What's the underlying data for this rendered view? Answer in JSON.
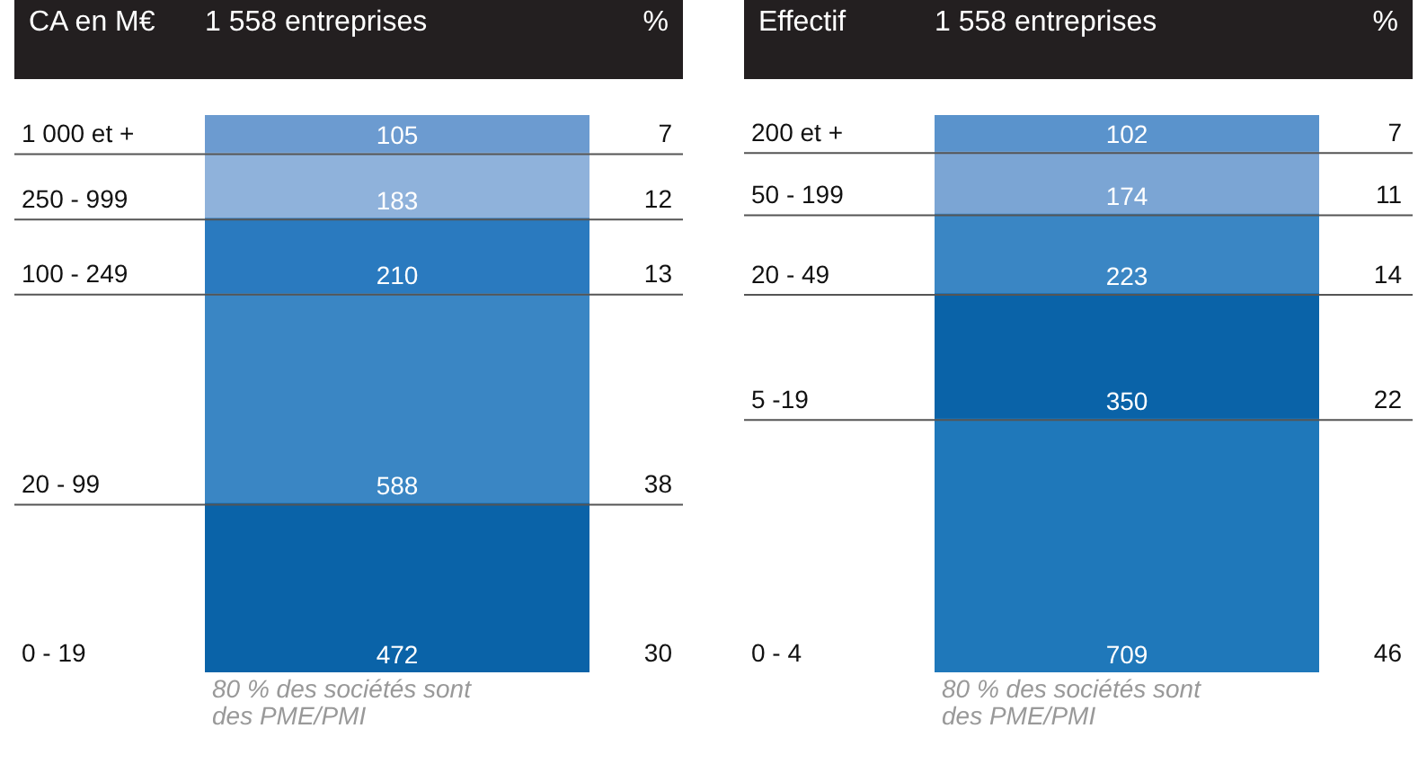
{
  "chart_data": [
    {
      "type": "other",
      "title": "CA en M€",
      "subtitle": "1 558 entreprises",
      "categories": [
        "0 - 19",
        "20 - 99",
        "100 - 249",
        "250 - 999",
        "1 000 et +"
      ],
      "data_labels": true,
      "values": [
        472,
        588,
        210,
        183,
        105
      ],
      "colors": [
        "#0a63a8",
        "#3a86c4",
        "#2a7abf",
        "#8fb2db",
        "#6c9bd0"
      ],
      "annotations": [
        "%",
        "30",
        "38",
        "13",
        "12",
        "7",
        "80 % des sociétés sont des PME/PMI"
      ]
    },
    {
      "type": "other",
      "title": "Effectif",
      "subtitle": "1 558 entreprises",
      "categories": [
        "0 - 4",
        "5 -19",
        "20 - 49",
        "50 - 199",
        "200 et +"
      ],
      "data_labels": true,
      "values": [
        709,
        350,
        223,
        174,
        102
      ],
      "colors": [
        "#1f78ba",
        "#0a63a8",
        "#3a86c4",
        "#7ba5d4",
        "#5a93cc"
      ],
      "annotations": [
        "%",
        "46",
        "22",
        "14",
        "11",
        "7",
        "80 % des sociétés sont des PME/PMI"
      ]
    }
  ]
}
